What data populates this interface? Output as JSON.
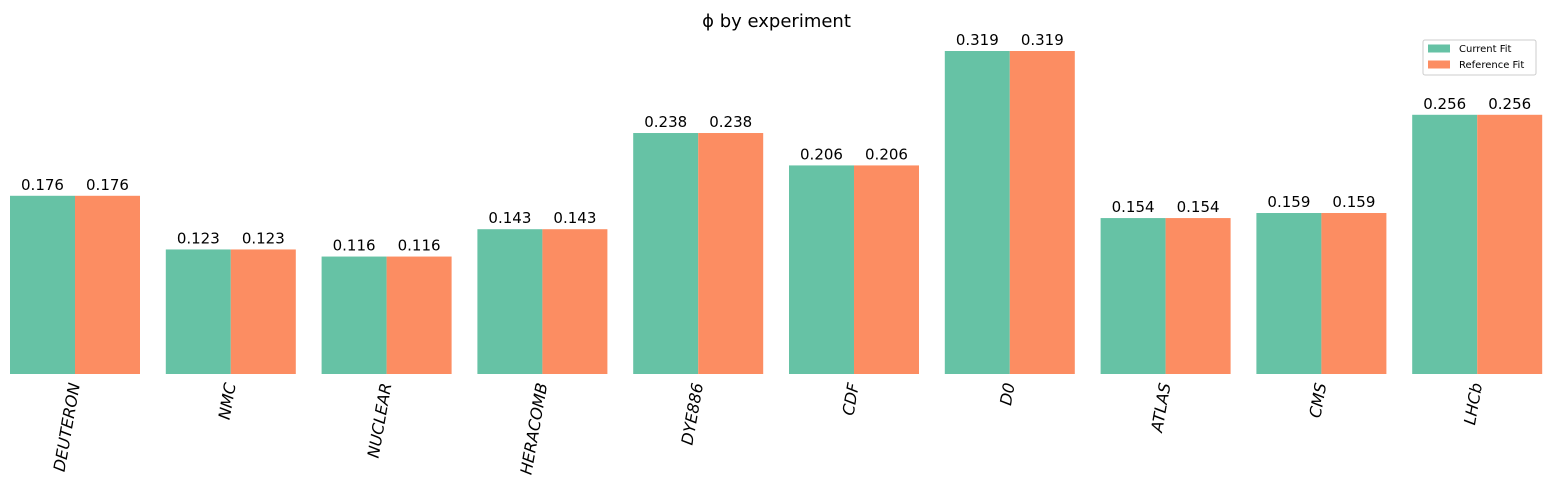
{
  "chart_data": {
    "type": "bar",
    "title": "ϕ by experiment",
    "xlabel": "",
    "ylabel": "",
    "categories": [
      "DEUTERON",
      "NMC",
      "NUCLEAR",
      "HERACOMB",
      "DYE886",
      "CDF",
      "D0",
      "ATLAS",
      "CMS",
      "LHCb"
    ],
    "series": [
      {
        "name": "Current Fit",
        "color": "#66c2a5",
        "values": [
          0.176,
          0.123,
          0.116,
          0.143,
          0.238,
          0.206,
          0.319,
          0.154,
          0.159,
          0.256
        ],
        "labels": [
          "0.176",
          "0.123",
          "0.116",
          "0.143",
          "0.238",
          "0.206",
          "0.319",
          "0.154",
          "0.159",
          "0.256"
        ]
      },
      {
        "name": "Reference Fit",
        "color": "#fc8d62",
        "values": [
          0.176,
          0.123,
          0.116,
          0.143,
          0.238,
          0.206,
          0.319,
          0.154,
          0.159,
          0.256
        ],
        "labels": [
          "0.176",
          "0.123",
          "0.116",
          "0.143",
          "0.238",
          "0.206",
          "0.319",
          "0.154",
          "0.159",
          "0.256"
        ]
      }
    ],
    "ylim": [
      0,
      0.319
    ],
    "grid": false,
    "legend": "top-right",
    "tick_rotation_deg": -80
  }
}
